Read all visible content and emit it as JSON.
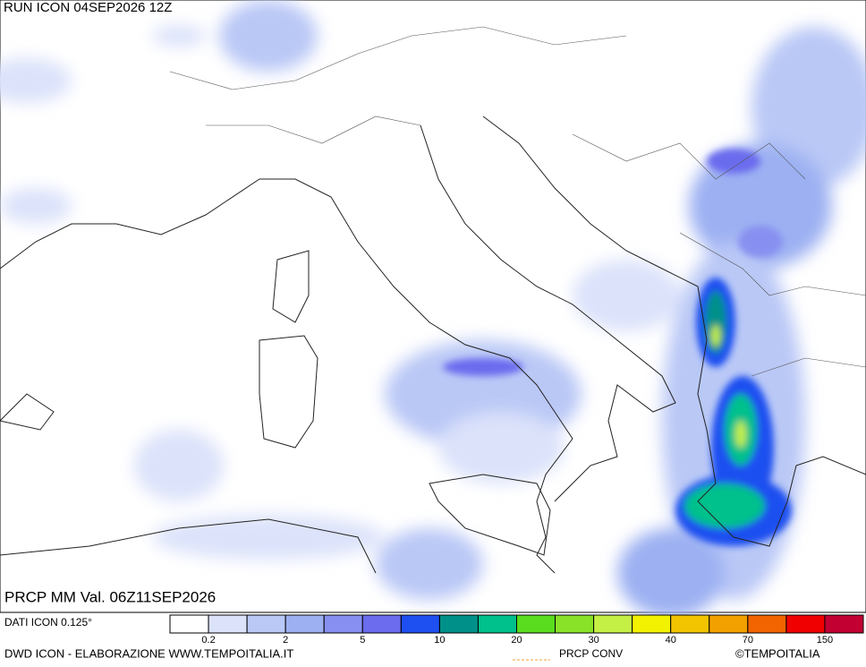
{
  "header": {
    "run": "RUN ICON 04SEP2026 12Z",
    "valid": "PRCP MM Val. 06Z11SEP2026"
  },
  "footer": {
    "data_source": "DATI ICON 0.125°",
    "credit": "DWD ICON - ELABORAZIONE WWW.TEMPOITALIA.IT",
    "conv_label": "PRCP CONV",
    "copyright": "©TEMPOITALIA"
  },
  "legend": {
    "colors": [
      "#ffffff",
      "#dbe2fa",
      "#bac8f6",
      "#9cb0f2",
      "#8790f0",
      "#6b6cee",
      "#1e4ff0",
      "#00908a",
      "#00c08c",
      "#5adc1e",
      "#8ae228",
      "#c4f046",
      "#f2f200",
      "#f2c400",
      "#f2a000",
      "#f26400",
      "#f00000",
      "#c20032"
    ],
    "labels": [
      0.2,
      2,
      5,
      10,
      20,
      30,
      40,
      70,
      150
    ]
  }
}
